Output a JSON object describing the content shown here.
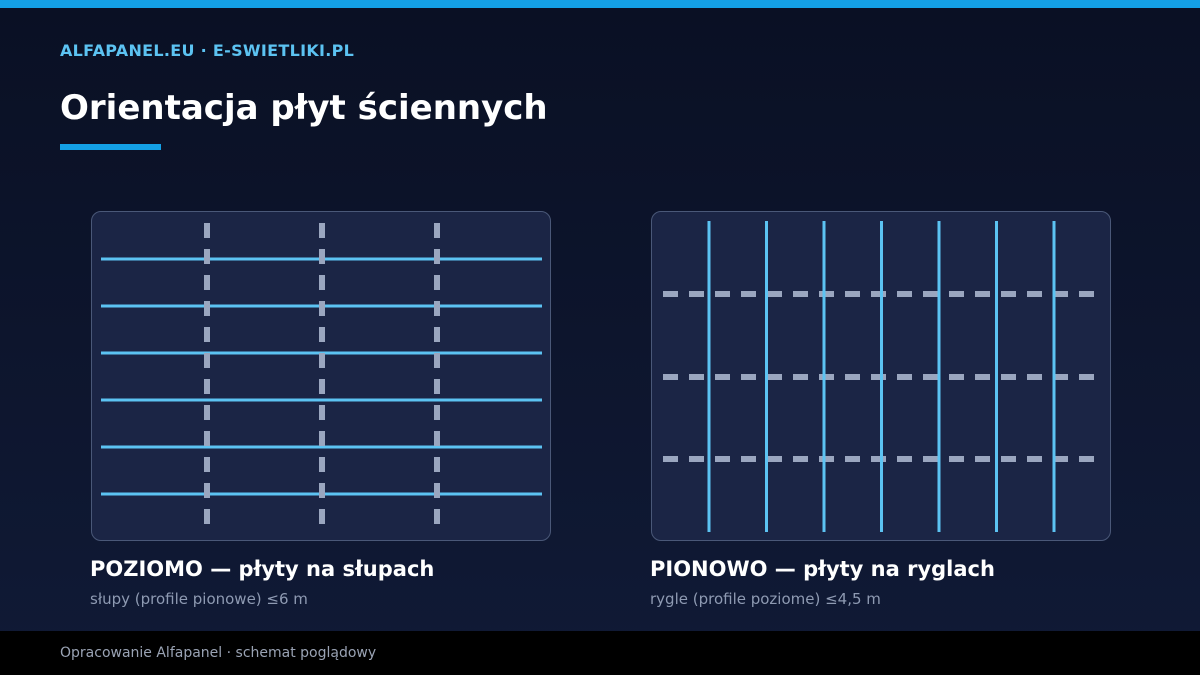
{
  "header": {
    "brand": "ALFAPANEL.EU · E-SWIETLIKI.PL",
    "title": "Orientacja płyt ściennych"
  },
  "diagrams": [
    {
      "id": "poziomo",
      "caption_title": "POZIOMO — płyty na słupach",
      "caption_sub": "słupy (profile pionowe) ≤6 m",
      "panel_lines": 6,
      "support_lines": 3,
      "panel_orientation": "horizontal",
      "support_orientation": "vertical"
    },
    {
      "id": "pionowo",
      "caption_title": "PIONOWO — płyty na ryglach",
      "caption_sub": "rygle (profile poziome) ≤4,5 m",
      "panel_lines": 7,
      "support_lines": 3,
      "panel_orientation": "vertical",
      "support_orientation": "horizontal"
    }
  ],
  "footer": {
    "text": "Opracowanie Alfapanel · schemat poglądowy"
  },
  "colors": {
    "accent": "#14a0e6",
    "panel_line": "#5cc3f2",
    "support_line": "#9aa6bf",
    "panel_bg": "#1b2545"
  }
}
